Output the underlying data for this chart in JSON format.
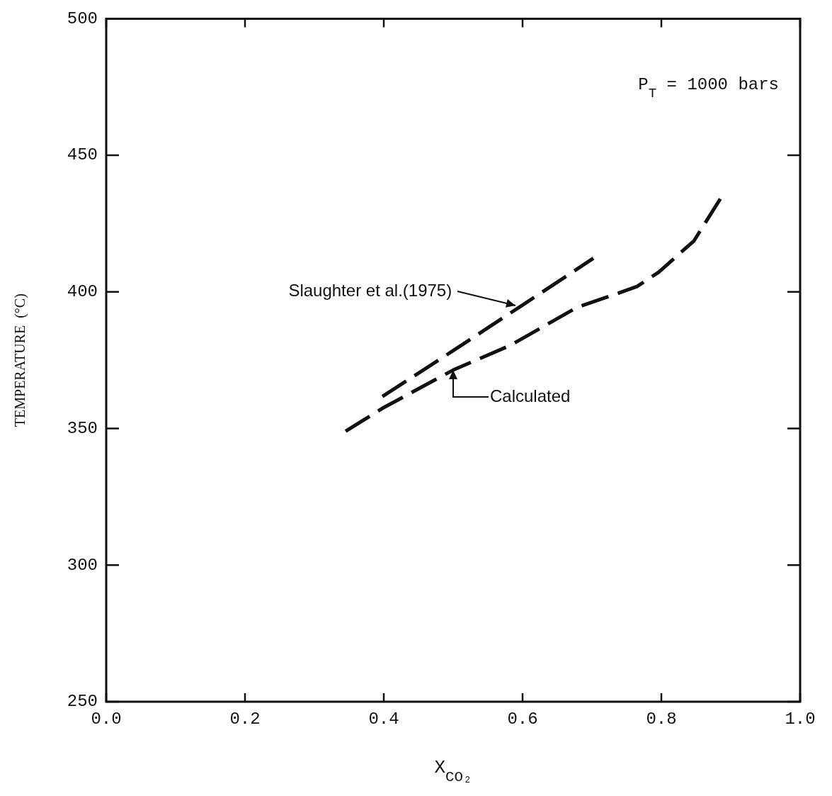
{
  "chart_data": {
    "type": "line",
    "xlabel": "X$_{CO₂}$",
    "ylabel": "TEMPERATURE  (°C)",
    "xlim": [
      0,
      1
    ],
    "xticks": [
      {
        "value": 0,
        "label": "0.0"
      },
      {
        "value": 0.2,
        "label": "0.2"
      },
      {
        "value": 0.4,
        "label": "0.4"
      },
      {
        "value": 0.6,
        "label": "0.6"
      },
      {
        "value": 0.8,
        "label": "0.8"
      },
      {
        "value": 1,
        "label": "1.0"
      }
    ],
    "ylim": [
      250,
      500
    ],
    "yticks": [
      250,
      300,
      350,
      400,
      450,
      500
    ],
    "series": [
      {
        "color": "#111111",
        "line_style": "dashed",
        "x": [
          0.398,
          0.5,
          0.6,
          0.702
        ],
        "values": [
          361.7,
          378.5,
          395.2,
          412.3
        ]
      },
      {
        "color": "#111111",
        "line_style": "dashed",
        "x": [
          0.345,
          0.398,
          0.5,
          0.582,
          0.679,
          0.724,
          0.765,
          0.796,
          0.847,
          0.888
        ],
        "values": [
          349,
          357.4,
          371.4,
          380.4,
          394.4,
          398.3,
          402,
          407.2,
          418.7,
          435.3
        ]
      }
    ],
    "annotations": [
      "P$_{T}$ = 1000 bars",
      {
        "text": "Slaughter et al.(1975)",
        "x": 0.59,
        "y": 395
      },
      {
        "text": "Calculated",
        "x": 0.5,
        "y": 371.4
      }
    ],
    "grid": false,
    "legend": false,
    "marker": "none"
  }
}
